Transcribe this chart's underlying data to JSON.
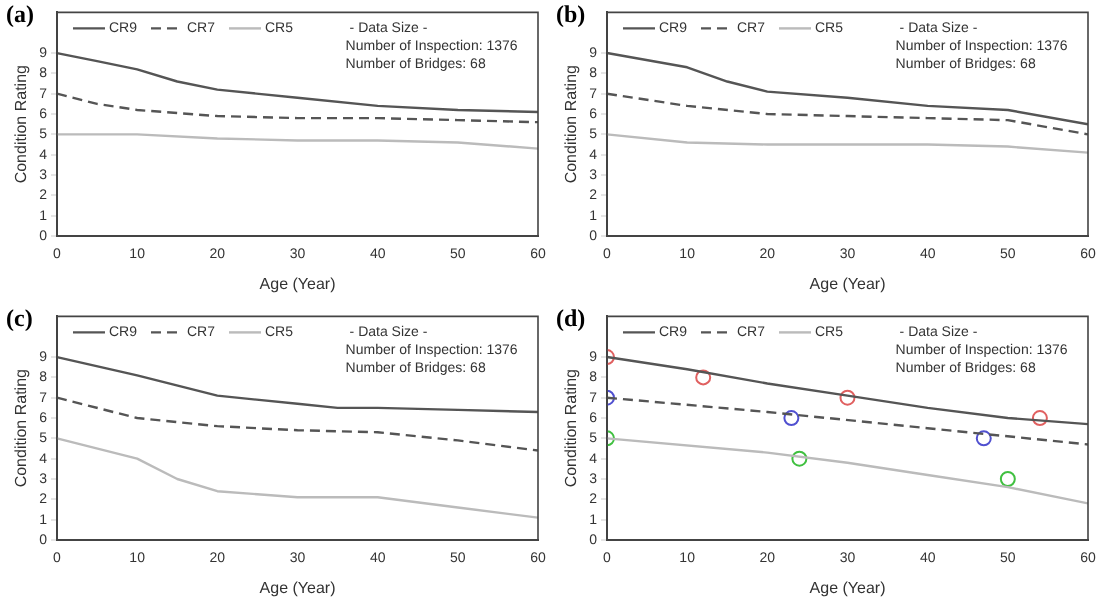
{
  "chart_data": [
    {
      "type": "line",
      "title": "(a)",
      "xlabel": "Age (Year)",
      "ylabel": "Condition Rating",
      "xlim": [
        0,
        60
      ],
      "xticks": [
        0,
        10,
        20,
        30,
        40,
        50,
        60
      ],
      "ylim": [
        0,
        11
      ],
      "yticks": [
        0,
        1,
        2,
        3,
        4,
        5,
        6,
        7,
        8,
        9
      ],
      "legend": "top left",
      "grid": false,
      "annotations": [
        "- Data Size -",
        "Number of Inspection: 1376",
        "Number of Bridges: 68"
      ],
      "series": [
        {
          "name": "CR9",
          "color": "#555555",
          "line_style": "solid",
          "x": [
            0,
            5,
            10,
            15,
            20,
            30,
            40,
            50,
            60
          ],
          "values": [
            9,
            8.6,
            8.2,
            7.6,
            7.2,
            6.8,
            6.4,
            6.2,
            6.1
          ]
        },
        {
          "name": "CR7",
          "color": "#555555",
          "line_style": "dashed",
          "x": [
            0,
            5,
            10,
            20,
            30,
            40,
            50,
            60
          ],
          "values": [
            7,
            6.5,
            6.2,
            5.9,
            5.8,
            5.8,
            5.7,
            5.6
          ]
        },
        {
          "name": "CR5",
          "color": "#bbbbbb",
          "line_style": "solid",
          "x": [
            0,
            10,
            20,
            30,
            40,
            50,
            60
          ],
          "values": [
            5,
            5,
            4.8,
            4.7,
            4.7,
            4.6,
            4.3
          ]
        }
      ]
    },
    {
      "type": "line",
      "title": "(b)",
      "xlabel": "Age (Year)",
      "ylabel": "Condition Rating",
      "xlim": [
        0,
        60
      ],
      "xticks": [
        0,
        10,
        20,
        30,
        40,
        50,
        60
      ],
      "ylim": [
        0,
        11
      ],
      "yticks": [
        0,
        1,
        2,
        3,
        4,
        5,
        6,
        7,
        8,
        9
      ],
      "legend": "top left",
      "grid": false,
      "annotations": [
        "- Data Size -",
        "Number of Inspection: 1376",
        "Number of Bridges: 68"
      ],
      "series": [
        {
          "name": "CR9",
          "color": "#555555",
          "line_style": "solid",
          "x": [
            0,
            10,
            15,
            20,
            30,
            40,
            50,
            60
          ],
          "values": [
            9,
            8.3,
            7.6,
            7.1,
            6.8,
            6.4,
            6.2,
            5.5
          ]
        },
        {
          "name": "CR7",
          "color": "#555555",
          "line_style": "dashed",
          "x": [
            0,
            10,
            20,
            30,
            40,
            50,
            60
          ],
          "values": [
            7,
            6.4,
            6,
            5.9,
            5.8,
            5.7,
            5
          ]
        },
        {
          "name": "CR5",
          "color": "#bbbbbb",
          "line_style": "solid",
          "x": [
            0,
            10,
            20,
            30,
            40,
            50,
            60
          ],
          "values": [
            5,
            4.6,
            4.5,
            4.5,
            4.5,
            4.4,
            4.1
          ]
        }
      ]
    },
    {
      "type": "line",
      "title": "(c)",
      "xlabel": "Age (Year)",
      "ylabel": "Condition Rating",
      "xlim": [
        0,
        60
      ],
      "xticks": [
        0,
        10,
        20,
        30,
        40,
        50,
        60
      ],
      "ylim": [
        0,
        11
      ],
      "yticks": [
        0,
        1,
        2,
        3,
        4,
        5,
        6,
        7,
        8,
        9
      ],
      "legend": "top left",
      "grid": false,
      "annotations": [
        "- Data Size -",
        "Number of Inspection: 1376",
        "Number of Bridges: 68"
      ],
      "series": [
        {
          "name": "CR9",
          "color": "#555555",
          "line_style": "solid",
          "x": [
            0,
            10,
            20,
            30,
            35,
            40,
            50,
            60
          ],
          "values": [
            9,
            8.1,
            7.1,
            6.7,
            6.5,
            6.5,
            6.4,
            6.3
          ]
        },
        {
          "name": "CR7",
          "color": "#555555",
          "line_style": "dashed",
          "x": [
            0,
            10,
            20,
            30,
            40,
            50,
            60
          ],
          "values": [
            7,
            6,
            5.6,
            5.4,
            5.3,
            4.9,
            4.4
          ]
        },
        {
          "name": "CR5",
          "color": "#bbbbbb",
          "line_style": "solid",
          "x": [
            0,
            10,
            15,
            20,
            30,
            40,
            50,
            60
          ],
          "values": [
            5,
            4,
            3,
            2.4,
            2.1,
            2.1,
            1.6,
            1.1
          ]
        }
      ]
    },
    {
      "type": "line",
      "title": "(d)",
      "xlabel": "Age (Year)",
      "ylabel": "Condition Rating",
      "xlim": [
        0,
        60
      ],
      "xticks": [
        0,
        10,
        20,
        30,
        40,
        50,
        60
      ],
      "ylim": [
        0,
        11
      ],
      "yticks": [
        0,
        1,
        2,
        3,
        4,
        5,
        6,
        7,
        8,
        9
      ],
      "legend": "top left",
      "grid": false,
      "annotations": [
        "- Data Size -",
        "Number of Inspection: 1376",
        "Number of Bridges: 68"
      ],
      "series": [
        {
          "name": "CR9",
          "color": "#555555",
          "line_style": "solid",
          "x": [
            0,
            10,
            20,
            30,
            40,
            50,
            60
          ],
          "values": [
            9,
            8.4,
            7.7,
            7.1,
            6.5,
            6,
            5.7
          ]
        },
        {
          "name": "CR7",
          "color": "#555555",
          "line_style": "dashed",
          "x": [
            0,
            20,
            40,
            60
          ],
          "values": [
            7,
            6.3,
            5.5,
            4.7
          ]
        },
        {
          "name": "CR5",
          "color": "#bbbbbb",
          "line_style": "solid",
          "x": [
            0,
            20,
            30,
            40,
            50,
            60
          ],
          "values": [
            5,
            4.3,
            3.8,
            3.2,
            2.6,
            1.8
          ]
        },
        {
          "type": "scatter",
          "marker": "circle",
          "color": "#e06060",
          "x": [
            0,
            12,
            30,
            54
          ],
          "values": [
            9,
            8,
            7,
            6
          ]
        },
        {
          "type": "scatter",
          "marker": "circle",
          "color": "#5050d0",
          "x": [
            0,
            23,
            47
          ],
          "values": [
            7,
            6,
            5
          ]
        },
        {
          "type": "scatter",
          "marker": "circle",
          "color": "#40c040",
          "x": [
            0,
            24,
            50
          ],
          "values": [
            5,
            4,
            3
          ]
        }
      ]
    }
  ]
}
